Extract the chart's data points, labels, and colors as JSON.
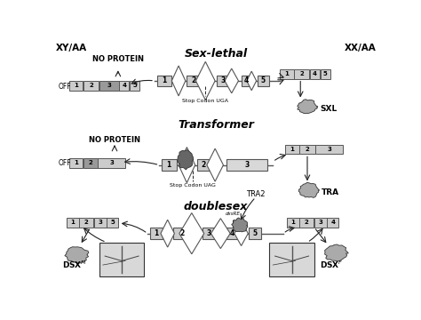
{
  "title": "Sex-lethal",
  "title2": "Transformer",
  "title3": "doublesex",
  "bg_color": "#ffffff",
  "label_xy_aa": "XY/AA",
  "label_xx_aa": "XX/AA",
  "box_color": "#cccccc",
  "box_edge": "#555555",
  "line_color": "#222222"
}
